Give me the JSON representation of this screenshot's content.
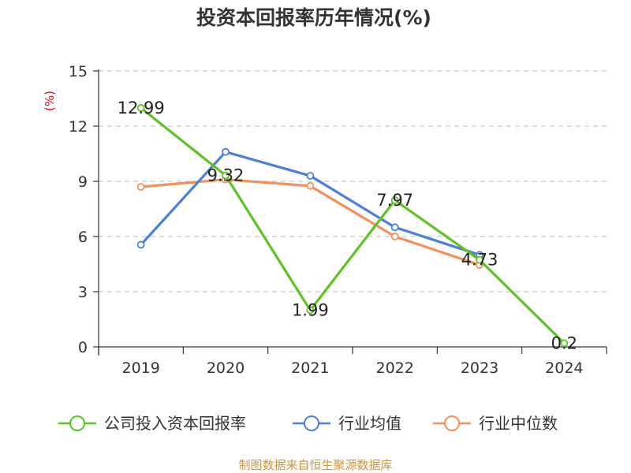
{
  "chart_data": {
    "type": "line",
    "title": "投资本回报率历年情况(%)",
    "ylabel": "(%)",
    "xlabel": "",
    "categories": [
      "2019",
      "2020",
      "2021",
      "2022",
      "2023",
      "2024"
    ],
    "ylim": [
      0,
      15
    ],
    "yticks": [
      0,
      3,
      6,
      9,
      12,
      15
    ],
    "grid": true,
    "series": [
      {
        "name": "公司投入资本回报率",
        "color": "#5cc421",
        "values": [
          12.99,
          9.32,
          1.99,
          7.97,
          4.73,
          0.2
        ],
        "labels": [
          "12.99",
          "9.32",
          "1.99",
          "7.97",
          "4.73",
          "0.2"
        ]
      },
      {
        "name": "行业均值",
        "color": "#4a7fdb",
        "values": [
          5.55,
          10.6,
          9.3,
          6.5,
          5.0,
          null
        ]
      },
      {
        "name": "行业中位数",
        "color": "#f48f5a",
        "values": [
          8.7,
          9.1,
          8.75,
          6.0,
          4.45,
          null
        ]
      }
    ],
    "source": "制图数据来自恒生聚源数据库"
  }
}
